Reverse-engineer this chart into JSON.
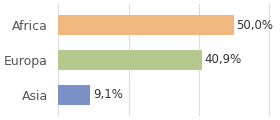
{
  "categories": [
    "Asia",
    "Europa",
    "Africa"
  ],
  "values": [
    9.1,
    40.9,
    50.0
  ],
  "bar_colors": [
    "#7b8fc9",
    "#b5c98e",
    "#f0b87e"
  ],
  "labels": [
    "9,1%",
    "40,9%",
    "50,0%"
  ],
  "xlim": [
    0,
    62
  ],
  "background_color": "#ffffff",
  "bar_height": 0.58,
  "label_fontsize": 8.5,
  "tick_fontsize": 9
}
